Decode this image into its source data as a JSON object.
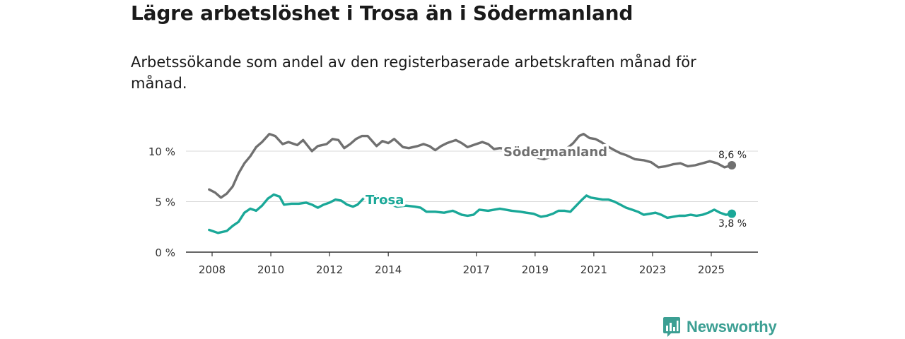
{
  "title": "Lägre arbetslöshet i Trosa än i Södermanland",
  "subtitle": "Arbetssökande som andel av den registerbaserade arbetskraften månad för månad.",
  "brand": {
    "name": "Newsworthy",
    "icon": "newsworthy-logo-icon"
  },
  "colors": {
    "sodermanland": "#707070",
    "trosa": "#1aa898",
    "grid": "#d9d9d9",
    "axis": "#333333",
    "brand": "#3c9f93"
  },
  "chart_data": {
    "type": "line",
    "title": "Lägre arbetslöshet i Trosa än i Södermanland",
    "xlabel": "",
    "ylabel": "",
    "xlim": [
      2007.3,
      2026.4
    ],
    "ylim": [
      0,
      12
    ],
    "grid": true,
    "y_ticks": [
      {
        "value": 0,
        "label": "0 %"
      },
      {
        "value": 5,
        "label": "5 %"
      },
      {
        "value": 10,
        "label": "10 %"
      }
    ],
    "x_ticks": [
      {
        "value": 2008,
        "label": "2008"
      },
      {
        "value": 2010,
        "label": "2010"
      },
      {
        "value": 2012,
        "label": "2012"
      },
      {
        "value": 2014,
        "label": "2014"
      },
      {
        "value": 2017,
        "label": "2017"
      },
      {
        "value": 2019,
        "label": "2019"
      },
      {
        "value": 2021,
        "label": "2021"
      },
      {
        "value": 2023,
        "label": "2023"
      },
      {
        "value": 2025,
        "label": "2025"
      }
    ],
    "series": [
      {
        "name": "Södermanland",
        "color": "#707070",
        "inline_label": "Södermanland",
        "end_label": "8,6 %",
        "points": [
          [
            2007.9,
            6.2
          ],
          [
            2008.1,
            5.9
          ],
          [
            2008.3,
            5.4
          ],
          [
            2008.5,
            5.8
          ],
          [
            2008.7,
            6.5
          ],
          [
            2008.9,
            7.8
          ],
          [
            2009.1,
            8.8
          ],
          [
            2009.3,
            9.5
          ],
          [
            2009.5,
            10.4
          ],
          [
            2009.7,
            10.9
          ],
          [
            2009.95,
            11.7
          ],
          [
            2010.15,
            11.5
          ],
          [
            2010.4,
            10.7
          ],
          [
            2010.6,
            10.9
          ],
          [
            2010.9,
            10.6
          ],
          [
            2011.1,
            11.1
          ],
          [
            2011.4,
            10.0
          ],
          [
            2011.6,
            10.5
          ],
          [
            2011.9,
            10.7
          ],
          [
            2012.1,
            11.2
          ],
          [
            2012.3,
            11.1
          ],
          [
            2012.5,
            10.3
          ],
          [
            2012.7,
            10.7
          ],
          [
            2012.9,
            11.2
          ],
          [
            2013.1,
            11.5
          ],
          [
            2013.3,
            11.5
          ],
          [
            2013.6,
            10.5
          ],
          [
            2013.8,
            11.0
          ],
          [
            2014.0,
            10.8
          ],
          [
            2014.2,
            11.2
          ],
          [
            2014.5,
            10.4
          ],
          [
            2014.7,
            10.3
          ],
          [
            2015.0,
            10.5
          ],
          [
            2015.2,
            10.7
          ],
          [
            2015.4,
            10.5
          ],
          [
            2015.6,
            10.1
          ],
          [
            2015.8,
            10.5
          ],
          [
            2016.0,
            10.8
          ],
          [
            2016.3,
            11.1
          ],
          [
            2016.5,
            10.8
          ],
          [
            2016.7,
            10.4
          ],
          [
            2016.9,
            10.6
          ],
          [
            2017.2,
            10.9
          ],
          [
            2017.4,
            10.7
          ],
          [
            2017.6,
            10.2
          ],
          [
            2017.8,
            10.3
          ],
          [
            2018.0,
            10.2
          ],
          [
            2018.4,
            9.6
          ],
          [
            2018.7,
            9.7
          ],
          [
            2019.0,
            9.4
          ],
          [
            2019.3,
            9.2
          ],
          [
            2019.6,
            9.5
          ],
          [
            2019.9,
            10.0
          ],
          [
            2020.1,
            10.3
          ],
          [
            2020.3,
            10.8
          ],
          [
            2020.5,
            11.5
          ],
          [
            2020.65,
            11.7
          ],
          [
            2020.85,
            11.3
          ],
          [
            2021.05,
            11.2
          ],
          [
            2021.25,
            10.9
          ],
          [
            2021.45,
            10.5
          ],
          [
            2021.7,
            10.1
          ],
          [
            2021.9,
            9.8
          ],
          [
            2022.1,
            9.6
          ],
          [
            2022.4,
            9.2
          ],
          [
            2022.7,
            9.1
          ],
          [
            2022.95,
            8.9
          ],
          [
            2023.2,
            8.4
          ],
          [
            2023.45,
            8.5
          ],
          [
            2023.7,
            8.7
          ],
          [
            2023.95,
            8.8
          ],
          [
            2024.2,
            8.5
          ],
          [
            2024.45,
            8.6
          ],
          [
            2024.7,
            8.8
          ],
          [
            2024.95,
            9.0
          ],
          [
            2025.2,
            8.8
          ],
          [
            2025.45,
            8.4
          ],
          [
            2025.7,
            8.6
          ]
        ]
      },
      {
        "name": "Trosa",
        "color": "#1aa898",
        "inline_label": "Trosa",
        "end_label": "3,8 %",
        "points": [
          [
            2007.9,
            2.2
          ],
          [
            2008.2,
            1.9
          ],
          [
            2008.5,
            2.1
          ],
          [
            2008.7,
            2.6
          ],
          [
            2008.9,
            3.0
          ],
          [
            2009.1,
            3.9
          ],
          [
            2009.3,
            4.3
          ],
          [
            2009.5,
            4.1
          ],
          [
            2009.7,
            4.6
          ],
          [
            2009.9,
            5.3
          ],
          [
            2010.1,
            5.7
          ],
          [
            2010.3,
            5.5
          ],
          [
            2010.45,
            4.7
          ],
          [
            2010.7,
            4.8
          ],
          [
            2010.95,
            4.8
          ],
          [
            2011.2,
            4.9
          ],
          [
            2011.4,
            4.7
          ],
          [
            2011.6,
            4.4
          ],
          [
            2011.8,
            4.7
          ],
          [
            2012.0,
            4.9
          ],
          [
            2012.2,
            5.2
          ],
          [
            2012.4,
            5.1
          ],
          [
            2012.6,
            4.7
          ],
          [
            2012.8,
            4.5
          ],
          [
            2012.95,
            4.7
          ],
          [
            2013.15,
            5.3
          ],
          [
            2013.3,
            5.6
          ],
          [
            2013.5,
            5.8
          ],
          [
            2014.0,
            4.8
          ],
          [
            2014.3,
            4.5
          ],
          [
            2014.6,
            4.6
          ],
          [
            2014.9,
            4.5
          ],
          [
            2015.1,
            4.4
          ],
          [
            2015.3,
            4.0
          ],
          [
            2015.6,
            4.0
          ],
          [
            2015.9,
            3.9
          ],
          [
            2016.2,
            4.1
          ],
          [
            2016.5,
            3.7
          ],
          [
            2016.7,
            3.6
          ],
          [
            2016.9,
            3.7
          ],
          [
            2017.1,
            4.2
          ],
          [
            2017.4,
            4.1
          ],
          [
            2017.6,
            4.2
          ],
          [
            2017.8,
            4.3
          ],
          [
            2018.0,
            4.2
          ],
          [
            2018.2,
            4.1
          ],
          [
            2018.5,
            4.0
          ],
          [
            2018.7,
            3.9
          ],
          [
            2018.95,
            3.8
          ],
          [
            2019.2,
            3.5
          ],
          [
            2019.4,
            3.6
          ],
          [
            2019.6,
            3.8
          ],
          [
            2019.8,
            4.1
          ],
          [
            2020.0,
            4.1
          ],
          [
            2020.2,
            4.0
          ],
          [
            2020.4,
            4.6
          ],
          [
            2020.6,
            5.2
          ],
          [
            2020.75,
            5.6
          ],
          [
            2020.9,
            5.4
          ],
          [
            2021.1,
            5.3
          ],
          [
            2021.3,
            5.2
          ],
          [
            2021.5,
            5.2
          ],
          [
            2021.7,
            5.0
          ],
          [
            2021.9,
            4.7
          ],
          [
            2022.1,
            4.4
          ],
          [
            2022.3,
            4.2
          ],
          [
            2022.5,
            4.0
          ],
          [
            2022.7,
            3.7
          ],
          [
            2022.9,
            3.8
          ],
          [
            2023.1,
            3.9
          ],
          [
            2023.3,
            3.7
          ],
          [
            2023.5,
            3.4
          ],
          [
            2023.7,
            3.5
          ],
          [
            2023.9,
            3.6
          ],
          [
            2024.1,
            3.6
          ],
          [
            2024.3,
            3.7
          ],
          [
            2024.5,
            3.6
          ],
          [
            2024.7,
            3.7
          ],
          [
            2024.9,
            3.9
          ],
          [
            2025.1,
            4.2
          ],
          [
            2025.3,
            3.9
          ],
          [
            2025.5,
            3.7
          ],
          [
            2025.7,
            3.8
          ]
        ]
      }
    ]
  }
}
